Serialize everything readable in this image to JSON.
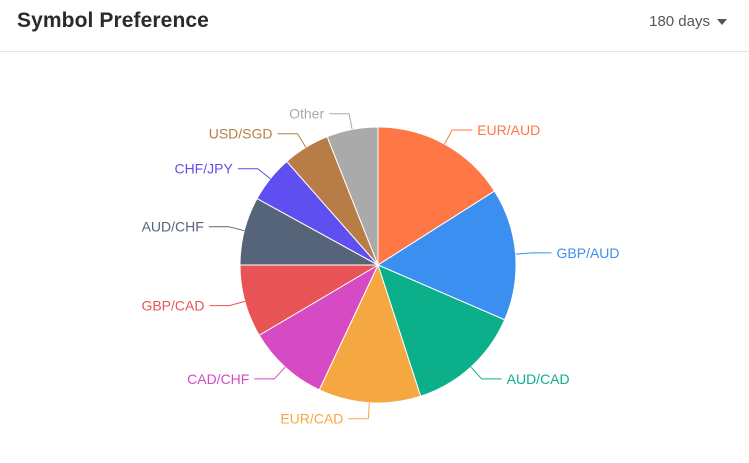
{
  "header": {
    "title": "Symbol Preference",
    "range_label": "180 days"
  },
  "chart_data": {
    "type": "pie",
    "title": "",
    "categories": [
      "EUR/AUD",
      "GBP/AUD",
      "AUD/CAD",
      "EUR/CAD",
      "CAD/CHF",
      "GBP/CAD",
      "AUD/CHF",
      "CHF/JPY",
      "USD/SGD",
      "Other"
    ],
    "values": [
      16.0,
      15.5,
      13.5,
      12.0,
      9.5,
      8.5,
      8.0,
      5.5,
      5.5,
      6.0
    ],
    "colors": [
      "#ff7744",
      "#3b8ff0",
      "#0bb08a",
      "#f5a742",
      "#d64bc4",
      "#e85455",
      "#56647a",
      "#5f4ff0",
      "#b87d46",
      "#aaaaaa"
    ],
    "legend": "none",
    "start_angle": "top, clockwise"
  }
}
